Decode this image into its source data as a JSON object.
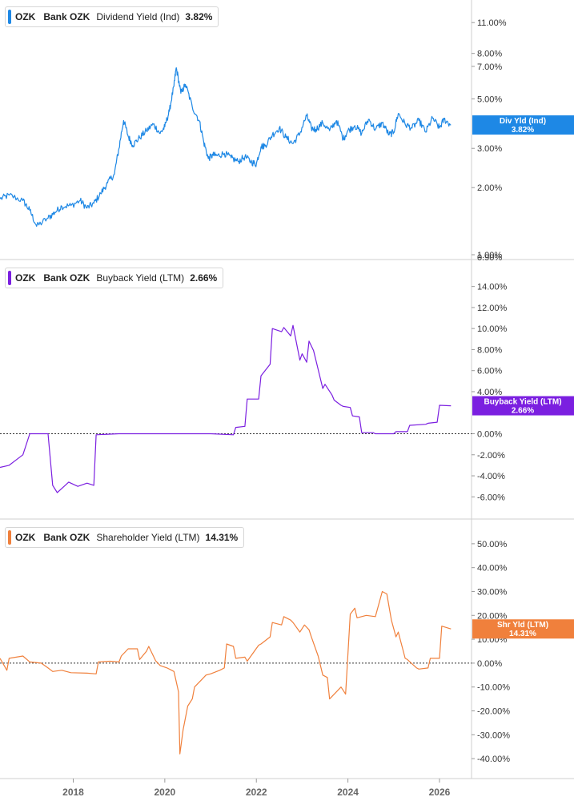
{
  "colors": {
    "dividend": "#1e88e5",
    "buyback": "#7b1fe0",
    "shareholder": "#f0803c",
    "divider": "#cfcfcf",
    "zero_line": "#333333",
    "axis_text": "#333333"
  },
  "x_axis": {
    "range": [
      2016.4,
      2026.7
    ],
    "ticks": [
      2018,
      2020,
      2022,
      2024,
      2026
    ],
    "tick_labels": [
      "2018",
      "2020",
      "2022",
      "2024",
      "2026"
    ]
  },
  "chart_data": [
    {
      "type": "line",
      "scale": "log",
      "legend": {
        "ticker": "OZK",
        "company": "Bank OZK",
        "metric": "Dividend Yield (Ind)",
        "value": "3.82%"
      },
      "badge": {
        "label": "Div Yld (Ind)",
        "value": "3.82%"
      },
      "ylim": [
        1.0,
        13.0
      ],
      "y_ticks": [
        11,
        8,
        7,
        5,
        3,
        2,
        1
      ],
      "y_tick_labels": [
        "11.00%",
        "8.00%",
        "7.00%",
        "5.00%",
        "3.00%",
        "2.00%",
        "1.00%"
      ],
      "extra_tick_labels": [
        "0.90%"
      ],
      "series": [
        {
          "x": [
            2016.4,
            2016.6,
            2016.9,
            2017.05,
            2017.2,
            2017.45,
            2017.6,
            2017.75,
            2017.95,
            2018.15,
            2018.3,
            2018.45,
            2018.6,
            2018.75,
            2018.9,
            2019.0,
            2019.1,
            2019.2,
            2019.3,
            2019.45,
            2019.6,
            2019.75,
            2019.9,
            2020.0,
            2020.1,
            2020.2,
            2020.25,
            2020.35,
            2020.45,
            2020.6,
            2020.75,
            2020.85,
            2020.95,
            2021.05,
            2021.15,
            2021.3,
            2021.45,
            2021.6,
            2021.75,
            2021.9,
            2022.0,
            2022.1,
            2022.2,
            2022.35,
            2022.5,
            2022.65,
            2022.8,
            2022.95,
            2023.1,
            2023.2,
            2023.3,
            2023.45,
            2023.6,
            2023.75,
            2023.9,
            2024.0,
            2024.15,
            2024.3,
            2024.45,
            2024.6,
            2024.75,
            2024.9,
            2025.0,
            2025.1,
            2025.25,
            2025.4,
            2025.55,
            2025.7,
            2025.85,
            2026.0,
            2026.1,
            2026.25
          ],
          "y": [
            1.78,
            1.85,
            1.75,
            1.58,
            1.34,
            1.46,
            1.55,
            1.65,
            1.66,
            1.75,
            1.62,
            1.7,
            1.88,
            2.1,
            2.3,
            3.0,
            4.0,
            3.4,
            3.1,
            3.35,
            3.6,
            3.85,
            3.5,
            3.75,
            4.4,
            5.7,
            6.9,
            5.3,
            5.8,
            4.6,
            4.0,
            3.2,
            2.7,
            2.8,
            2.78,
            2.85,
            2.72,
            2.62,
            2.75,
            2.6,
            2.55,
            3.05,
            3.1,
            3.45,
            3.7,
            3.35,
            3.15,
            3.5,
            4.2,
            3.7,
            3.65,
            3.9,
            3.6,
            4.0,
            3.3,
            3.6,
            3.8,
            3.5,
            4.05,
            3.65,
            3.9,
            3.45,
            3.55,
            4.3,
            3.85,
            3.7,
            4.0,
            3.55,
            4.1,
            3.7,
            4.05,
            3.82
          ]
        }
      ]
    },
    {
      "type": "line",
      "legend": {
        "ticker": "OZK",
        "company": "Bank OZK",
        "metric": "Buyback Yield (LTM)",
        "value": "2.66%"
      },
      "badge": {
        "label": "Buyback Yield (LTM)",
        "value": "2.66%"
      },
      "ylim": [
        -7.5,
        15.8
      ],
      "y_ticks": [
        14,
        12,
        10,
        8,
        6,
        4,
        0,
        -2,
        -4,
        -6
      ],
      "y_tick_labels": [
        "14.00%",
        "12.00%",
        "10.00%",
        "8.00%",
        "6.00%",
        "4.00%",
        "0.00%",
        "-2.00%",
        "-4.00%",
        "-6.00%"
      ],
      "series": [
        {
          "x": [
            2016.4,
            2016.6,
            2016.75,
            2016.9,
            2017.05,
            2017.45,
            2017.55,
            2017.65,
            2017.75,
            2017.9,
            2018.1,
            2018.3,
            2018.45,
            2018.5,
            2019.0,
            2020.0,
            2021.0,
            2021.5,
            2021.55,
            2021.75,
            2021.8,
            2022.05,
            2022.1,
            2022.3,
            2022.35,
            2022.55,
            2022.6,
            2022.75,
            2022.8,
            2022.95,
            2023.0,
            2023.1,
            2023.15,
            2023.25,
            2023.3,
            2023.45,
            2023.5,
            2023.65,
            2023.7,
            2023.85,
            2023.9,
            2024.05,
            2024.1,
            2024.25,
            2024.3,
            2024.55,
            2024.6,
            2025.0,
            2025.05,
            2025.3,
            2025.35,
            2025.7,
            2025.75,
            2025.95,
            2026.0,
            2026.25
          ],
          "y": [
            -3.2,
            -3.0,
            -2.5,
            -2.0,
            0.0,
            0.0,
            -4.9,
            -5.6,
            -5.2,
            -4.6,
            -5.0,
            -4.7,
            -4.9,
            -0.1,
            0.0,
            0.0,
            0.0,
            -0.1,
            0.6,
            0.7,
            3.3,
            3.3,
            5.5,
            6.6,
            10.0,
            9.7,
            10.1,
            9.3,
            10.3,
            7.0,
            7.6,
            6.8,
            8.8,
            7.9,
            7.0,
            4.3,
            4.7,
            3.7,
            3.2,
            2.7,
            2.6,
            2.5,
            1.7,
            1.6,
            0.1,
            0.1,
            0.0,
            0.0,
            0.2,
            0.2,
            0.8,
            0.9,
            1.0,
            1.1,
            2.7,
            2.66
          ]
        }
      ]
    },
    {
      "type": "line",
      "legend": {
        "ticker": "OZK",
        "company": "Bank OZK",
        "metric": "Shareholder Yield (LTM)",
        "value": "14.31%"
      },
      "badge": {
        "label": "Shr Yld (LTM)",
        "value": "14.31%"
      },
      "ylim": [
        -46,
        57
      ],
      "y_ticks": [
        50,
        40,
        30,
        20,
        10,
        0,
        -10,
        -20,
        -30,
        -40
      ],
      "y_tick_labels": [
        "50.00%",
        "40.00%",
        "30.00%",
        "20.00%",
        "10.00%",
        "0.00%",
        "-10.00%",
        "-20.00%",
        "-30.00%",
        "-40.00%"
      ],
      "series": [
        {
          "x": [
            2016.4,
            2016.55,
            2016.6,
            2016.9,
            2017.05,
            2017.3,
            2017.45,
            2017.55,
            2017.75,
            2017.95,
            2018.3,
            2018.5,
            2018.55,
            2018.8,
            2019.0,
            2019.05,
            2019.2,
            2019.4,
            2019.45,
            2019.6,
            2019.65,
            2019.8,
            2019.9,
            2020.05,
            2020.2,
            2020.3,
            2020.33,
            2020.4,
            2020.5,
            2020.6,
            2020.65,
            2020.8,
            2020.9,
            2021.0,
            2021.2,
            2021.3,
            2021.35,
            2021.5,
            2021.55,
            2021.75,
            2021.8,
            2022.05,
            2022.1,
            2022.3,
            2022.35,
            2022.55,
            2022.6,
            2022.75,
            2022.8,
            2022.95,
            2023.05,
            2023.15,
            2023.2,
            2023.35,
            2023.45,
            2023.55,
            2023.6,
            2023.75,
            2023.85,
            2023.95,
            2024.05,
            2024.15,
            2024.2,
            2024.4,
            2024.6,
            2024.75,
            2024.85,
            2024.95,
            2025.05,
            2025.1,
            2025.25,
            2025.3,
            2025.5,
            2025.55,
            2025.75,
            2025.8,
            2026.0,
            2026.05,
            2026.25
          ],
          "y": [
            2.0,
            -3.0,
            2.0,
            3.0,
            0.5,
            0.0,
            -2.0,
            -3.5,
            -3.0,
            -4.0,
            -4.2,
            -4.5,
            0.5,
            0.8,
            0.5,
            3.0,
            6.0,
            6.0,
            1.5,
            5.0,
            7.0,
            1.0,
            -1.0,
            -2.0,
            -3.5,
            -12.0,
            -38.0,
            -28.0,
            -18.0,
            -15.0,
            -10.0,
            -7.0,
            -5.0,
            -4.5,
            -3.0,
            -2.0,
            8.0,
            7.0,
            2.0,
            2.5,
            0.8,
            7.5,
            8.0,
            11.0,
            17.0,
            16.0,
            19.5,
            18.0,
            17.0,
            13.0,
            16.0,
            14.0,
            11.0,
            3.0,
            -5.0,
            -6.0,
            -15.0,
            -12.0,
            -10.0,
            -13.0,
            20.5,
            23.0,
            19.0,
            20.0,
            19.5,
            30.0,
            29.0,
            18.0,
            11.0,
            13.0,
            2.0,
            1.5,
            -2.0,
            -2.5,
            -2.0,
            2.0,
            2.0,
            15.5,
            14.31
          ]
        }
      ]
    }
  ]
}
